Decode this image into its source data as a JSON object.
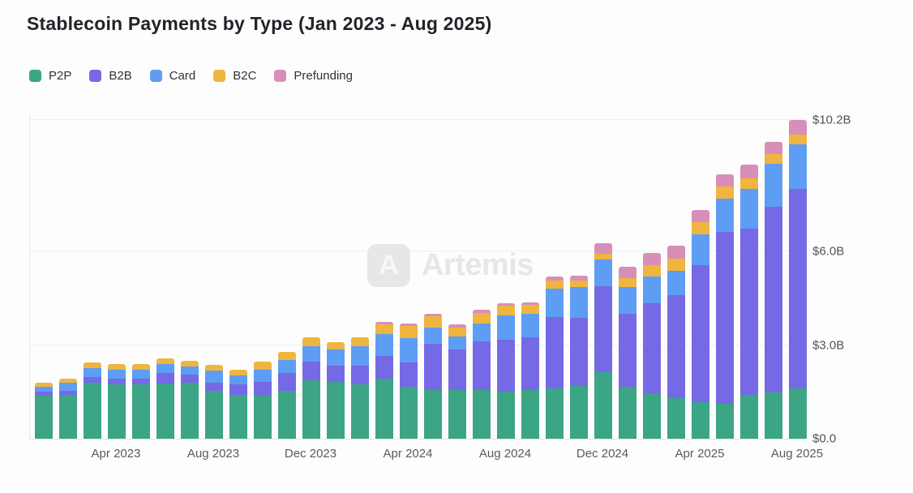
{
  "title": "Stablecoin Payments by Type (Jan 2023 - Aug 2025)",
  "watermark": {
    "logo_letter": "A",
    "text": "Artemis"
  },
  "legend": [
    {
      "label": "P2P"
    },
    {
      "label": "B2B"
    },
    {
      "label": "Card"
    },
    {
      "label": "B2C"
    },
    {
      "label": "Prefunding"
    }
  ],
  "colors": {
    "p2p": "#3BA586",
    "b2b": "#7569E6",
    "card": "#5E9DF4",
    "b2c": "#EFB53F",
    "prefunding": "#D78FB8"
  },
  "chart_data": {
    "type": "bar",
    "stacked": true,
    "title": "Stablecoin Payments by Type (Jan 2023 - Aug 2025)",
    "unit": "USD billions",
    "ylim": [
      0,
      10.2
    ],
    "grid": "horizontal",
    "legend_position": "top-left",
    "x": [
      "Jan 2023",
      "Feb 2023",
      "Mar 2023",
      "Apr 2023",
      "May 2023",
      "Jun 2023",
      "Jul 2023",
      "Aug 2023",
      "Sep 2023",
      "Oct 2023",
      "Nov 2023",
      "Dec 2023",
      "Jan 2024",
      "Feb 2024",
      "Mar 2024",
      "Apr 2024",
      "May 2024",
      "Jun 2024",
      "Jul 2024",
      "Aug 2024",
      "Sep 2024",
      "Oct 2024",
      "Nov 2024",
      "Dec 2024",
      "Jan 2025",
      "Feb 2025",
      "Mar 2025",
      "Apr 2025",
      "May 2025",
      "Jun 2025",
      "Jul 2025",
      "Aug 2025"
    ],
    "x_tick_labels": [
      "Apr 2023",
      "Aug 2023",
      "Dec 2023",
      "Apr 2024",
      "Aug 2024",
      "Dec 2024",
      "Apr 2025",
      "Aug 2025"
    ],
    "y_ticks": [
      {
        "value": 0,
        "label": "$0.0"
      },
      {
        "value": 3,
        "label": "$3.0B"
      },
      {
        "value": 6,
        "label": "$6.0B"
      },
      {
        "value": 10.2,
        "label": "$10.2B"
      }
    ],
    "series": [
      {
        "name": "P2P",
        "color": "#3BA586",
        "values": [
          1.37,
          1.41,
          1.8,
          1.75,
          1.75,
          1.76,
          1.8,
          1.54,
          1.41,
          1.37,
          1.54,
          1.88,
          1.82,
          1.75,
          1.93,
          1.67,
          1.55,
          1.57,
          1.55,
          1.5,
          1.55,
          1.62,
          1.7,
          2.14,
          1.65,
          1.45,
          1.3,
          1.17,
          1.13,
          1.41,
          1.49,
          1.62
        ]
      },
      {
        "name": "B2B",
        "color": "#7569E6",
        "values": [
          0.13,
          0.13,
          0.17,
          0.17,
          0.18,
          0.34,
          0.26,
          0.26,
          0.34,
          0.46,
          0.56,
          0.6,
          0.53,
          0.6,
          0.73,
          0.77,
          1.5,
          1.3,
          1.58,
          1.68,
          1.7,
          2.28,
          2.16,
          2.75,
          2.35,
          2.9,
          3.3,
          4.38,
          5.5,
          5.33,
          5.95,
          6.38
        ]
      },
      {
        "name": "Card",
        "color": "#5E9DF4",
        "values": [
          0.17,
          0.26,
          0.3,
          0.3,
          0.28,
          0.3,
          0.26,
          0.39,
          0.28,
          0.38,
          0.43,
          0.49,
          0.52,
          0.6,
          0.69,
          0.77,
          0.52,
          0.4,
          0.56,
          0.77,
          0.75,
          0.9,
          0.99,
          0.86,
          0.85,
          0.85,
          0.78,
          0.99,
          1.07,
          1.25,
          1.37,
          1.43
        ]
      },
      {
        "name": "B2C",
        "color": "#EFB53F",
        "values": [
          0.13,
          0.13,
          0.17,
          0.17,
          0.18,
          0.17,
          0.17,
          0.17,
          0.19,
          0.26,
          0.26,
          0.28,
          0.23,
          0.3,
          0.32,
          0.4,
          0.34,
          0.3,
          0.34,
          0.3,
          0.28,
          0.26,
          0.21,
          0.17,
          0.3,
          0.35,
          0.4,
          0.39,
          0.39,
          0.35,
          0.3,
          0.32
        ]
      },
      {
        "name": "Prefunding",
        "color": "#D78FB8",
        "values": [
          0,
          0,
          0,
          0,
          0,
          0,
          0,
          0,
          0,
          0,
          0,
          0,
          0,
          0,
          0.08,
          0.08,
          0.09,
          0.09,
          0.09,
          0.09,
          0.09,
          0.13,
          0.17,
          0.34,
          0.35,
          0.4,
          0.4,
          0.39,
          0.39,
          0.43,
          0.39,
          0.45
        ]
      }
    ]
  }
}
